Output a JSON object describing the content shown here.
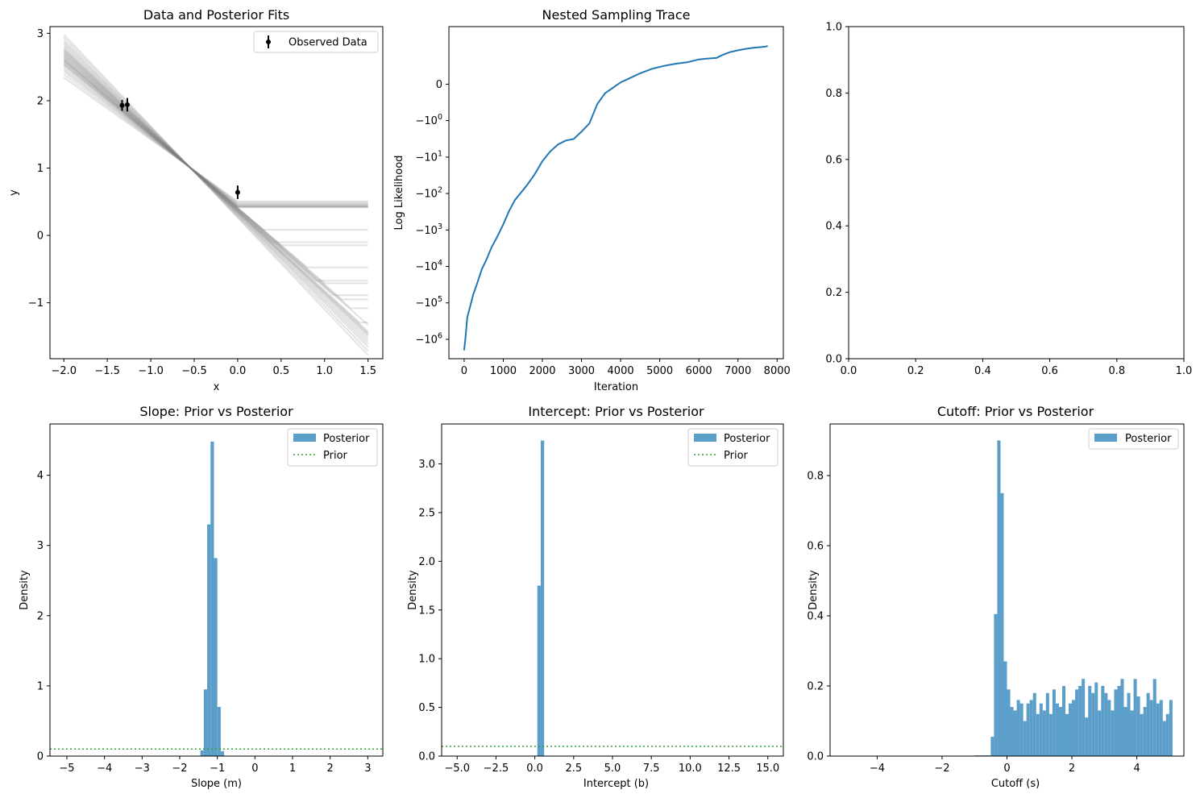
{
  "figure": {
    "background": "#ffffff",
    "accent": "#1f77b4",
    "hist_color": "#5b9ec9",
    "prior_color": "#2ca02c"
  },
  "panels": {
    "data_fits": {
      "title": "Data and Posterior Fits",
      "xlabel": "x",
      "ylabel": "y",
      "legend": "Observed Data"
    },
    "trace": {
      "title": "Nested Sampling Trace",
      "xlabel": "Iteration",
      "ylabel": "Log Likelihood"
    },
    "slope": {
      "title": "Slope: Prior vs Posterior",
      "xlabel": "Slope (m)",
      "ylabel": "Density",
      "legend_posterior": "Posterior",
      "legend_prior": "Prior"
    },
    "intercept": {
      "title": "Intercept: Prior vs Posterior",
      "xlabel": "Intercept (b)",
      "ylabel": "Density",
      "legend_posterior": "Posterior",
      "legend_prior": "Prior"
    },
    "cutoff": {
      "title": "Cutoff: Prior vs Posterior",
      "xlabel": "Cutoff (s)",
      "ylabel": "Density",
      "legend_posterior": "Posterior"
    }
  },
  "chart_data": [
    {
      "id": "data_fits",
      "type": "line",
      "title": "Data and Posterior Fits",
      "xlabel": "x",
      "ylabel": "y",
      "xlim": [
        -2.16,
        1.67
      ],
      "ylim": [
        -1.83,
        3.1
      ],
      "xticks": [
        -2.0,
        -1.5,
        -1.0,
        -0.5,
        0.0,
        0.5,
        1.0,
        1.5
      ],
      "xticklabels": [
        "−2.0",
        "−1.5",
        "−1.0",
        "−0.5",
        "0.0",
        "0.5",
        "1.0",
        "1.5"
      ],
      "yticks": [
        -1,
        0,
        1,
        2,
        3
      ],
      "yticklabels": [
        "−1",
        "0",
        "1",
        "2",
        "3"
      ],
      "legend_position": "top-right",
      "observed": [
        {
          "x": -1.33,
          "y": 1.93,
          "err": 0.08
        },
        {
          "x": -1.27,
          "y": 1.94,
          "err": 0.1
        },
        {
          "x": 0.0,
          "y": 0.64,
          "err": 0.1
        }
      ],
      "fit_lines": {
        "pivot": {
          "x": -0.55,
          "y": 1.01
        },
        "line_color": "#808080",
        "slopes": [
          -0.92,
          -0.95,
          -0.98,
          -1.0,
          -1.02,
          -1.04,
          -1.05,
          -1.06,
          -1.07,
          -1.08,
          -1.09,
          -1.1,
          -1.1,
          -1.11,
          -1.12,
          -1.13,
          -1.14,
          -1.15,
          -1.16,
          -1.17,
          -1.18,
          -1.19,
          -1.2,
          -1.21,
          -1.22,
          -1.24,
          -1.26,
          -1.28,
          -1.3,
          -1.33,
          -1.36
        ],
        "cutoffs": [
          0.0,
          0.0,
          0.0,
          0.0,
          0.0,
          0.0,
          0.0,
          0.0,
          0.0,
          0.0,
          0.3,
          0.5,
          0.8,
          1.0,
          1.2,
          1.3,
          1.5,
          1.1,
          0.9,
          0.4,
          1.4,
          1.5,
          1.5,
          1.5,
          1.5,
          1.5,
          1.5,
          1.5,
          1.5,
          1.5,
          1.5
        ]
      }
    },
    {
      "id": "trace",
      "type": "line",
      "title": "Nested Sampling Trace",
      "xlabel": "Iteration",
      "ylabel": "Log Likelihood",
      "yscale": "symlog",
      "xlim": [
        -390,
        8160
      ],
      "xticks": [
        0,
        1000,
        2000,
        3000,
        4000,
        5000,
        6000,
        7000,
        8000
      ],
      "xticklabels": [
        "0",
        "1000",
        "2000",
        "3000",
        "4000",
        "5000",
        "6000",
        "7000",
        "8000"
      ],
      "yticklabels": [
        "0",
        "−10^0",
        "−10^1",
        "−10^2",
        "−10^3",
        "−10^4",
        "−10^5",
        "−10^6"
      ],
      "x": [
        0,
        30,
        80,
        150,
        230,
        330,
        450,
        570,
        700,
        850,
        1000,
        1150,
        1300,
        1450,
        1600,
        1800,
        2000,
        2200,
        2400,
        2600,
        2800,
        3000,
        3200,
        3400,
        3600,
        3800,
        4000,
        4200,
        4500,
        4800,
        5100,
        5400,
        5700,
        6000,
        6200,
        6450,
        6600,
        6800,
        7000,
        7200,
        7400,
        7600,
        7720,
        7760
      ],
      "y": [
        -2000000,
        -1000000,
        -250000,
        -130000,
        -60000,
        -30000,
        -12000,
        -6500,
        -3000,
        -1500,
        -700,
        -300,
        -150,
        -95,
        -60,
        -30,
        -13,
        -7,
        -4.5,
        -3.5,
        -3.2,
        -2.0,
        -1.2,
        -0.55,
        -0.25,
        -0.1,
        0.05,
        0.15,
        0.3,
        0.42,
        0.5,
        0.56,
        0.6,
        0.68,
        0.7,
        0.72,
        0.8,
        0.88,
        0.93,
        0.97,
        1.0,
        1.04,
        1.08,
        1.12
      ]
    },
    {
      "id": "empty",
      "type": "line",
      "xlim": [
        0,
        1
      ],
      "ylim": [
        0,
        1
      ],
      "xticks": [
        0.0,
        0.2,
        0.4,
        0.6,
        0.8,
        1.0
      ],
      "xticklabels": [
        "0.0",
        "0.2",
        "0.4",
        "0.6",
        "0.8",
        "1.0"
      ],
      "yticks": [
        0.0,
        0.2,
        0.4,
        0.6,
        0.8,
        1.0
      ],
      "yticklabels": [
        "0.0",
        "0.2",
        "0.4",
        "0.6",
        "0.8",
        "1.0"
      ]
    },
    {
      "id": "slope",
      "type": "bar",
      "title": "Slope: Prior vs Posterior",
      "xlabel": "Slope (m)",
      "ylabel": "Density",
      "xlim": [
        -5.45,
        3.4
      ],
      "ylim": [
        0,
        4.73
      ],
      "xticks": [
        -5,
        -4,
        -3,
        -2,
        -1,
        0,
        1,
        2,
        3
      ],
      "xticklabels": [
        "−5",
        "−4",
        "−3",
        "−2",
        "−1",
        "0",
        "1",
        "2",
        "3"
      ],
      "yticks": [
        0,
        1,
        2,
        3,
        4
      ],
      "yticklabels": [
        "0",
        "1",
        "2",
        "3",
        "4"
      ],
      "legend_position": "top-right",
      "bin_edges": [
        -1.45,
        -1.36,
        -1.27,
        -1.18,
        -1.09,
        -1.0,
        -0.91,
        -0.82
      ],
      "density": [
        0.08,
        0.95,
        3.3,
        4.48,
        2.82,
        0.7,
        0.07
      ],
      "prior_density": 0.1
    },
    {
      "id": "intercept",
      "type": "bar",
      "title": "Intercept: Prior vs Posterior",
      "xlabel": "Intercept (b)",
      "ylabel": "Density",
      "xlim": [
        -6.0,
        16.0
      ],
      "ylim": [
        0,
        3.41
      ],
      "xticks": [
        -5.0,
        -2.5,
        0.0,
        2.5,
        5.0,
        7.5,
        10.0,
        12.5,
        15.0
      ],
      "xticklabels": [
        "−5.0",
        "−2.5",
        "0.0",
        "2.5",
        "5.0",
        "7.5",
        "10.0",
        "12.5",
        "15.0"
      ],
      "yticks": [
        0.0,
        0.5,
        1.0,
        1.5,
        2.0,
        2.5,
        3.0
      ],
      "yticklabels": [
        "0.0",
        "0.5",
        "1.0",
        "1.5",
        "2.0",
        "2.5",
        "3.0"
      ],
      "legend_position": "top-right",
      "bin_edges": [
        0.16,
        0.38,
        0.6
      ],
      "density": [
        1.75,
        3.24
      ],
      "prior_density": 0.1
    },
    {
      "id": "cutoff",
      "type": "bar",
      "title": "Cutoff: Prior vs Posterior",
      "xlabel": "Cutoff (s)",
      "ylabel": "Density",
      "xlim": [
        -5.45,
        5.45
      ],
      "ylim": [
        0,
        0.947
      ],
      "xticks": [
        -4,
        -2,
        0,
        2,
        4
      ],
      "xticklabels": [
        "−4",
        "−2",
        "0",
        "2",
        "4"
      ],
      "yticks": [
        0.0,
        0.2,
        0.4,
        0.6,
        0.8
      ],
      "yticklabels": [
        "0.0",
        "0.2",
        "0.4",
        "0.6",
        "0.8"
      ],
      "legend_position": "top-right",
      "bin_start": -5.0,
      "bin_width": 0.1,
      "density": [
        0,
        0,
        0,
        0,
        0,
        0,
        0,
        0,
        0,
        0,
        0,
        0,
        0,
        0,
        0,
        0,
        0,
        0,
        0,
        0,
        0,
        0,
        0,
        0,
        0,
        0,
        0,
        0,
        0,
        0,
        0,
        0,
        0,
        0,
        0,
        0,
        0,
        0,
        0,
        0,
        0.002,
        0.002,
        0.002,
        0.002,
        0.002,
        0.055,
        0.405,
        0.9,
        0.75,
        0.27,
        0.19,
        0.14,
        0.13,
        0.16,
        0.15,
        0.1,
        0.15,
        0.16,
        0.18,
        0.12,
        0.15,
        0.13,
        0.18,
        0.12,
        0.19,
        0.15,
        0.14,
        0.2,
        0.12,
        0.15,
        0.16,
        0.19,
        0.2,
        0.22,
        0.11,
        0.2,
        0.18,
        0.21,
        0.13,
        0.2,
        0.18,
        0.16,
        0.13,
        0.19,
        0.2,
        0.22,
        0.14,
        0.18,
        0.13,
        0.22,
        0.17,
        0.12,
        0.14,
        0.18,
        0.16,
        0.22,
        0.15,
        0.16,
        0.1,
        0.12,
        0.16
      ],
      "note": ""
    }
  ]
}
